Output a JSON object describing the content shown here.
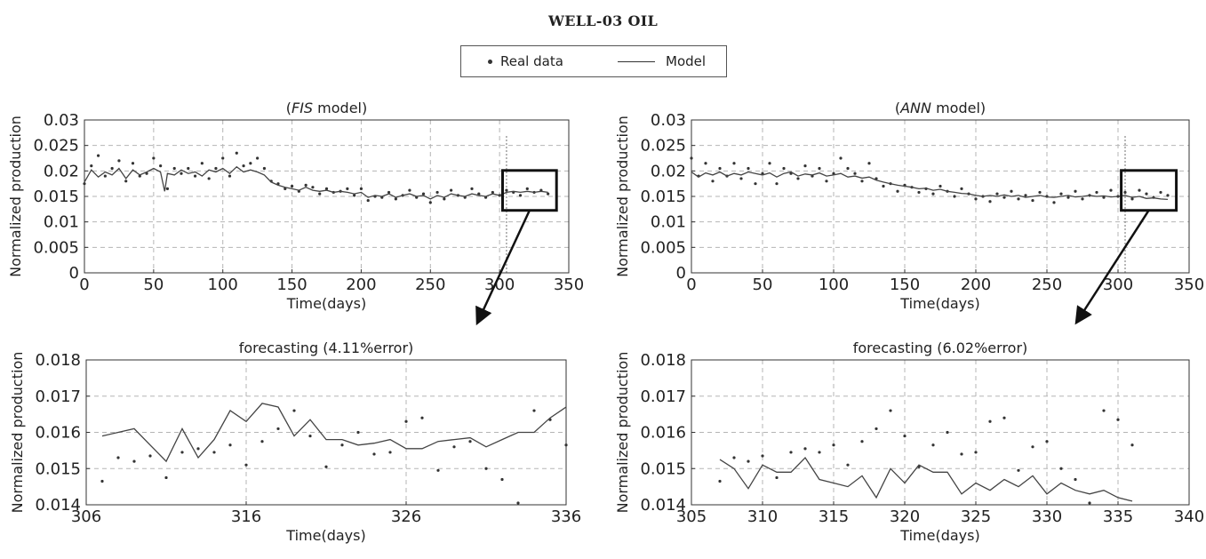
{
  "figure_title": "WELL-03 OIL",
  "legend": {
    "real": "Real data",
    "model": "Model"
  },
  "chart_data": [
    {
      "id": "fis-full",
      "type": "scatter",
      "title": {
        "pre": "(",
        "italic": "FIS",
        "post": " model)"
      },
      "xlabel": "Time(days)",
      "ylabel": "Normalized production",
      "xlim": [
        0,
        350
      ],
      "ylim": [
        0,
        0.03
      ],
      "xticks": [
        0,
        50,
        100,
        150,
        200,
        250,
        300,
        350
      ],
      "yticks": [
        0,
        0.005,
        0.01,
        0.015,
        0.02,
        0.025,
        0.03
      ],
      "ytick_labels": [
        "0",
        "0.005",
        "0.01",
        "0.015",
        "0.02",
        "0.025",
        "0.03"
      ],
      "grid": true,
      "vline_x": 305,
      "zoom_box": {
        "x": [
          306,
          336
        ],
        "y": [
          0.014,
          0.018
        ]
      },
      "series": [
        {
          "kind": "real",
          "x": [
            0,
            5,
            10,
            15,
            20,
            25,
            30,
            35,
            40,
            45,
            50,
            55,
            60,
            65,
            70,
            75,
            80,
            85,
            90,
            95,
            100,
            105,
            110,
            115,
            120,
            125,
            130,
            135,
            140,
            145,
            150,
            155,
            160,
            165,
            170,
            175,
            180,
            185,
            190,
            195,
            200,
            205,
            210,
            215,
            220,
            225,
            230,
            235,
            240,
            245,
            250,
            255,
            260,
            265,
            270,
            275,
            280,
            285,
            290,
            295,
            300,
            305,
            310,
            315,
            320,
            325,
            330,
            335
          ],
          "y": [
            0.0175,
            0.021,
            0.023,
            0.019,
            0.0205,
            0.022,
            0.018,
            0.0215,
            0.019,
            0.0195,
            0.0225,
            0.021,
            0.0165,
            0.0205,
            0.0195,
            0.0205,
            0.019,
            0.0215,
            0.0185,
            0.0205,
            0.0225,
            0.019,
            0.0235,
            0.021,
            0.0215,
            0.0225,
            0.0205,
            0.018,
            0.0175,
            0.0165,
            0.017,
            0.016,
            0.0172,
            0.0168,
            0.0155,
            0.0165,
            0.0158,
            0.016,
            0.0165,
            0.0152,
            0.0165,
            0.0142,
            0.015,
            0.0148,
            0.0158,
            0.0145,
            0.0152,
            0.0162,
            0.0148,
            0.0155,
            0.0138,
            0.0158,
            0.0145,
            0.0162,
            0.0152,
            0.0148,
            0.0165,
            0.0155,
            0.0148,
            0.0158,
            0.0152,
            0.0162,
            0.0158,
            0.0152,
            0.0165,
            0.0158,
            0.0162,
            0.0155
          ]
        },
        {
          "kind": "model",
          "x": [
            0,
            5,
            10,
            15,
            20,
            25,
            30,
            35,
            40,
            45,
            50,
            55,
            58,
            60,
            65,
            70,
            75,
            80,
            85,
            90,
            95,
            100,
            105,
            110,
            115,
            120,
            125,
            130,
            135,
            140,
            145,
            150,
            155,
            160,
            165,
            170,
            175,
            180,
            185,
            190,
            195,
            200,
            205,
            210,
            215,
            220,
            225,
            230,
            235,
            240,
            245,
            250,
            255,
            260,
            265,
            270,
            275,
            280,
            285,
            290,
            295,
            300,
            305,
            310,
            315,
            320,
            325,
            330,
            335
          ],
          "y": [
            0.0178,
            0.0202,
            0.0188,
            0.0198,
            0.0192,
            0.0205,
            0.0185,
            0.0202,
            0.0192,
            0.0198,
            0.0205,
            0.0198,
            0.016,
            0.0195,
            0.0192,
            0.0202,
            0.0195,
            0.0198,
            0.019,
            0.0202,
            0.0198,
            0.0205,
            0.0195,
            0.0208,
            0.0198,
            0.0202,
            0.0198,
            0.0192,
            0.0178,
            0.0172,
            0.0168,
            0.0165,
            0.0162,
            0.0168,
            0.0162,
            0.016,
            0.0162,
            0.0158,
            0.016,
            0.0158,
            0.0155,
            0.0158,
            0.0148,
            0.0152,
            0.015,
            0.0155,
            0.0148,
            0.0152,
            0.0155,
            0.015,
            0.0152,
            0.0145,
            0.0152,
            0.0148,
            0.0155,
            0.0152,
            0.015,
            0.0155,
            0.0152,
            0.015,
            0.0155,
            0.0152,
            0.0158,
            0.016,
            0.0158,
            0.016,
            0.0158,
            0.016,
            0.0158
          ]
        }
      ]
    },
    {
      "id": "ann-full",
      "type": "scatter",
      "title": {
        "pre": "(",
        "italic": "ANN",
        "post": " model)"
      },
      "xlabel": "Time(days)",
      "ylabel": "Normalized production",
      "xlim": [
        0,
        350
      ],
      "ylim": [
        0,
        0.03
      ],
      "xticks": [
        0,
        50,
        100,
        150,
        200,
        250,
        300,
        350
      ],
      "yticks": [
        0,
        0.005,
        0.01,
        0.015,
        0.02,
        0.025,
        0.03
      ],
      "ytick_labels": [
        "0",
        "0.005",
        "0.01",
        "0.015",
        "0.02",
        "0.025",
        "0.03"
      ],
      "grid": true,
      "vline_x": 305,
      "zoom_box": {
        "x": [
          306,
          336
        ],
        "y": [
          0.014,
          0.018
        ]
      },
      "series": [
        {
          "kind": "real",
          "x": [
            0,
            5,
            10,
            15,
            20,
            25,
            30,
            35,
            40,
            45,
            50,
            55,
            60,
            65,
            70,
            75,
            80,
            85,
            90,
            95,
            100,
            105,
            110,
            115,
            120,
            125,
            130,
            135,
            140,
            145,
            150,
            155,
            160,
            165,
            170,
            175,
            180,
            185,
            190,
            195,
            200,
            205,
            210,
            215,
            220,
            225,
            230,
            235,
            240,
            245,
            250,
            255,
            260,
            265,
            270,
            275,
            280,
            285,
            290,
            295,
            300,
            305,
            310,
            315,
            320,
            325,
            330,
            335
          ],
          "y": [
            0.0225,
            0.019,
            0.0215,
            0.018,
            0.0205,
            0.019,
            0.0215,
            0.0185,
            0.0205,
            0.0175,
            0.0195,
            0.0215,
            0.0175,
            0.0205,
            0.0195,
            0.0185,
            0.021,
            0.019,
            0.0205,
            0.018,
            0.0195,
            0.0225,
            0.0205,
            0.0195,
            0.018,
            0.0215,
            0.0185,
            0.017,
            0.0175,
            0.016,
            0.0172,
            0.0168,
            0.0158,
            0.0165,
            0.0155,
            0.017,
            0.016,
            0.015,
            0.0165,
            0.0155,
            0.0145,
            0.015,
            0.014,
            0.0155,
            0.0148,
            0.016,
            0.0145,
            0.0152,
            0.0142,
            0.0158,
            0.015,
            0.0138,
            0.0155,
            0.0148,
            0.016,
            0.0145,
            0.0152,
            0.0158,
            0.0148,
            0.0162,
            0.015,
            0.0158,
            0.0145,
            0.0162,
            0.0155,
            0.0148,
            0.0158,
            0.0152
          ]
        },
        {
          "kind": "model",
          "x": [
            0,
            5,
            10,
            15,
            20,
            25,
            30,
            35,
            40,
            45,
            50,
            55,
            60,
            65,
            70,
            75,
            80,
            85,
            90,
            95,
            100,
            105,
            110,
            115,
            120,
            125,
            130,
            135,
            140,
            145,
            150,
            155,
            160,
            165,
            170,
            175,
            180,
            185,
            190,
            195,
            200,
            205,
            210,
            215,
            220,
            225,
            230,
            235,
            240,
            245,
            250,
            255,
            260,
            265,
            270,
            275,
            280,
            285,
            290,
            295,
            300,
            305,
            310,
            315,
            320,
            325,
            330,
            335
          ],
          "y": [
            0.0198,
            0.0188,
            0.0196,
            0.0192,
            0.0198,
            0.019,
            0.0195,
            0.0192,
            0.0198,
            0.0195,
            0.0192,
            0.0196,
            0.0188,
            0.0195,
            0.0198,
            0.019,
            0.0194,
            0.0192,
            0.0196,
            0.019,
            0.0192,
            0.0195,
            0.0188,
            0.019,
            0.0186,
            0.0188,
            0.0182,
            0.0178,
            0.0175,
            0.0172,
            0.017,
            0.0168,
            0.0165,
            0.0166,
            0.0162,
            0.0164,
            0.016,
            0.0158,
            0.0156,
            0.0155,
            0.0152,
            0.015,
            0.0152,
            0.015,
            0.0153,
            0.015,
            0.0152,
            0.0148,
            0.015,
            0.0152,
            0.0149,
            0.0148,
            0.015,
            0.0152,
            0.0149,
            0.015,
            0.0152,
            0.015,
            0.0151,
            0.0149,
            0.015,
            0.0152,
            0.0148,
            0.015,
            0.0146,
            0.0147,
            0.0145,
            0.0144
          ]
        }
      ]
    },
    {
      "id": "fis-forecast",
      "type": "scatter",
      "title": "forecasting (4.11%error)",
      "xlabel": "Time(days)",
      "ylabel": "Normalized production",
      "xlim": [
        306,
        336
      ],
      "ylim": [
        0.014,
        0.018
      ],
      "xticks": [
        306,
        316,
        326,
        336
      ],
      "yticks": [
        0.014,
        0.015,
        0.016,
        0.017,
        0.018
      ],
      "ytick_labels": [
        "0.014",
        "0.015",
        "0.016",
        "0.017",
        "0.018"
      ],
      "grid": true,
      "series": [
        {
          "kind": "real",
          "x": [
            307,
            308,
            309,
            310,
            311,
            312,
            313,
            314,
            315,
            316,
            317,
            318,
            319,
            320,
            321,
            322,
            323,
            324,
            325,
            326,
            327,
            328,
            329,
            330,
            331,
            332,
            333,
            334,
            335,
            336
          ],
          "y": [
            0.01465,
            0.0153,
            0.0152,
            0.01535,
            0.01475,
            0.01545,
            0.01555,
            0.01545,
            0.01565,
            0.0151,
            0.01575,
            0.0161,
            0.0166,
            0.0159,
            0.01505,
            0.01565,
            0.016,
            0.0154,
            0.01545,
            0.0163,
            0.0164,
            0.01495,
            0.0156,
            0.01575,
            0.015,
            0.0147,
            0.01405,
            0.0166,
            0.01635,
            0.01565
          ]
        },
        {
          "kind": "model",
          "x": [
            307,
            308,
            309,
            310,
            311,
            312,
            313,
            314,
            315,
            316,
            317,
            318,
            319,
            320,
            321,
            322,
            323,
            324,
            325,
            326,
            327,
            328,
            329,
            330,
            331,
            332,
            333,
            334,
            335,
            336
          ],
          "y": [
            0.0159,
            0.016,
            0.0161,
            0.01565,
            0.0152,
            0.0161,
            0.0153,
            0.0158,
            0.0166,
            0.0163,
            0.0168,
            0.0167,
            0.0159,
            0.01635,
            0.0158,
            0.0158,
            0.01565,
            0.0157,
            0.0158,
            0.01555,
            0.01555,
            0.01575,
            0.0158,
            0.01585,
            0.0156,
            0.0158,
            0.016,
            0.016,
            0.0164,
            0.0167
          ]
        }
      ]
    },
    {
      "id": "ann-forecast",
      "type": "scatter",
      "title": "forecasting (6.02%error)",
      "xlabel": "Time(days)",
      "ylabel": "Normalized production",
      "xlim": [
        305,
        340
      ],
      "ylim": [
        0.014,
        0.018
      ],
      "xticks": [
        305,
        310,
        315,
        320,
        325,
        330,
        335,
        340
      ],
      "yticks": [
        0.014,
        0.015,
        0.016,
        0.017,
        0.018
      ],
      "ytick_labels": [
        "0.014",
        "0.015",
        "0.016",
        "0.017",
        "0.018"
      ],
      "grid": true,
      "series": [
        {
          "kind": "real",
          "x": [
            307,
            308,
            309,
            310,
            311,
            312,
            313,
            314,
            315,
            316,
            317,
            318,
            319,
            320,
            321,
            322,
            323,
            324,
            325,
            326,
            327,
            328,
            329,
            330,
            331,
            332,
            333,
            334,
            335,
            336
          ],
          "y": [
            0.01465,
            0.0153,
            0.0152,
            0.01535,
            0.01475,
            0.01545,
            0.01555,
            0.01545,
            0.01565,
            0.0151,
            0.01575,
            0.0161,
            0.0166,
            0.0159,
            0.01505,
            0.01565,
            0.016,
            0.0154,
            0.01545,
            0.0163,
            0.0164,
            0.01495,
            0.0156,
            0.01575,
            0.015,
            0.0147,
            0.01405,
            0.0166,
            0.01635,
            0.01565
          ]
        },
        {
          "kind": "model",
          "x": [
            307,
            308,
            309,
            310,
            311,
            312,
            313,
            314,
            315,
            316,
            317,
            318,
            319,
            320,
            321,
            322,
            323,
            324,
            325,
            326,
            327,
            328,
            329,
            330,
            331,
            332,
            333,
            334,
            335,
            336
          ],
          "y": [
            0.01525,
            0.015,
            0.01445,
            0.0151,
            0.0149,
            0.0149,
            0.0153,
            0.0147,
            0.0146,
            0.0145,
            0.0148,
            0.0142,
            0.015,
            0.0146,
            0.0151,
            0.0149,
            0.0149,
            0.0143,
            0.0146,
            0.0144,
            0.0147,
            0.0145,
            0.0148,
            0.0143,
            0.0146,
            0.0144,
            0.0143,
            0.0144,
            0.0142,
            0.0141
          ]
        }
      ]
    }
  ]
}
